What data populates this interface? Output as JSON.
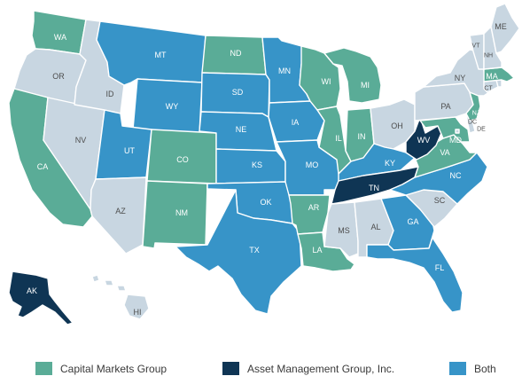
{
  "colors": {
    "capital": "#5aac97",
    "asset": "#0f3554",
    "both": "#3794c8",
    "none": "#c8d6e1"
  },
  "legend": [
    {
      "key": "capital",
      "label": "Capital Markets Group"
    },
    {
      "key": "asset",
      "label": "Asset Management Group, Inc."
    },
    {
      "key": "both",
      "label": "Both"
    }
  ],
  "states": {
    "WA": "capital",
    "OR": "none",
    "CA": "capital",
    "NV": "none",
    "ID": "none",
    "MT": "both",
    "WY": "both",
    "UT": "both",
    "AZ": "none",
    "CO": "capital",
    "NM": "capital",
    "ND": "capital",
    "SD": "both",
    "NE": "both",
    "KS": "both",
    "OK": "both",
    "TX": "both",
    "MN": "both",
    "IA": "both",
    "MO": "both",
    "AR": "capital",
    "LA": "capital",
    "WI": "capital",
    "IL": "capital",
    "MI": "capital",
    "IN": "capital",
    "OH": "none",
    "KY": "both",
    "TN": "asset",
    "MS": "none",
    "AL": "none",
    "GA": "both",
    "FL": "both",
    "SC": "none",
    "NC": "both",
    "VA": "capital",
    "WV": "asset",
    "MD": "capital",
    "DE": "none",
    "DC": "none",
    "PA": "none",
    "NJ": "capital",
    "NY": "none",
    "CT": "none",
    "RI": "none",
    "MA": "capital",
    "VT": "none",
    "NH": "none",
    "ME": "none",
    "AK": "asset",
    "HI": "none"
  }
}
